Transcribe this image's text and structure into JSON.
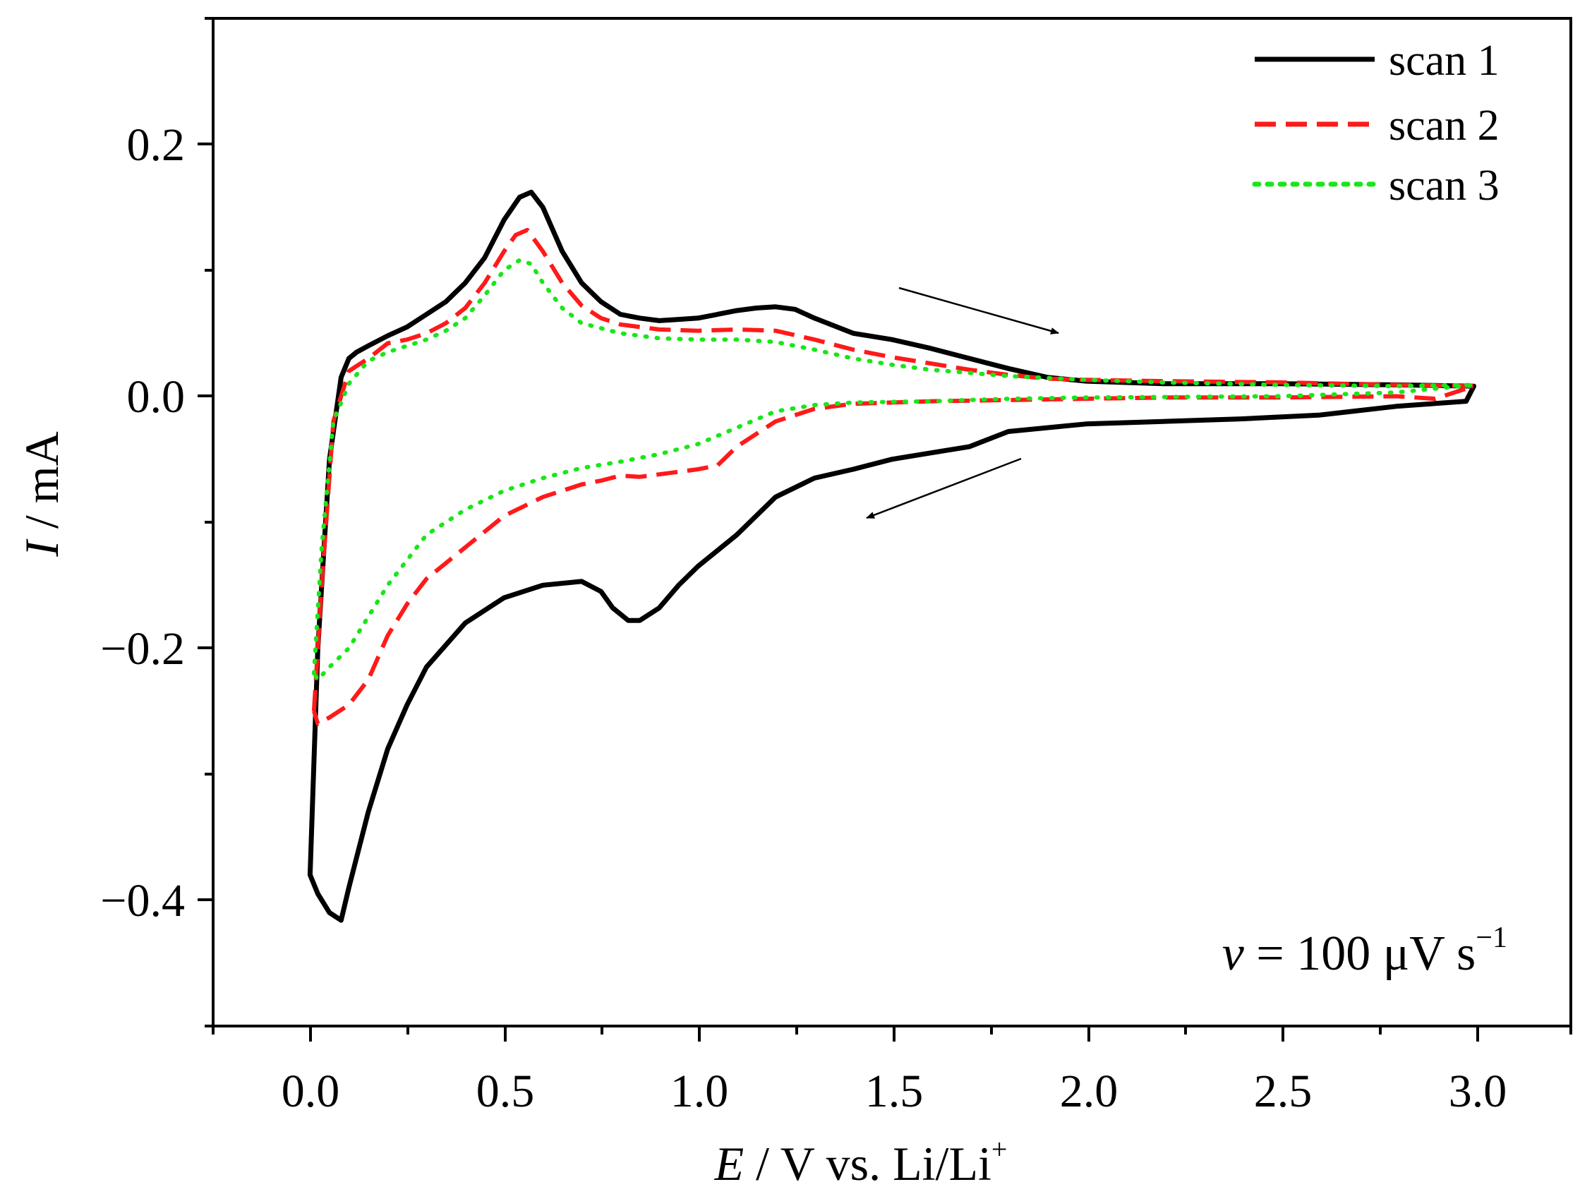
{
  "chart_data": {
    "type": "line",
    "title": "",
    "xlabel": {
      "var": "E",
      "rest": " / V vs. Li/Li",
      "sup": "+"
    },
    "ylabel": {
      "var": "I",
      "rest": " / mA"
    },
    "xlim": [
      -0.25,
      3.25
    ],
    "ylim": [
      -0.5,
      0.3
    ],
    "xticks": [
      0.0,
      0.5,
      1.0,
      1.5,
      2.0,
      2.5,
      3.0
    ],
    "xtick_labels": [
      "0.0",
      "0.5",
      "1.0",
      "1.5",
      "2.0",
      "2.5",
      "3.0"
    ],
    "yticks": [
      -0.4,
      -0.2,
      0.0,
      0.2
    ],
    "ytick_labels": [
      "−0.4",
      "−0.2",
      "0.0",
      "0.2"
    ],
    "legend_position": "top-right",
    "grid": false,
    "annotation": {
      "var": "v",
      "rest": " = 100 μV s",
      "sup": "−1"
    },
    "series": [
      {
        "name": "scan 1",
        "color": "#000000",
        "style": "solid",
        "x": [
          0.0,
          0.02,
          0.05,
          0.08,
          0.1,
          0.12,
          0.15,
          0.2,
          0.25,
          0.3,
          0.35,
          0.4,
          0.45,
          0.5,
          0.54,
          0.57,
          0.6,
          0.65,
          0.7,
          0.75,
          0.8,
          0.85,
          0.9,
          0.95,
          1.0,
          1.05,
          1.1,
          1.15,
          1.2,
          1.25,
          1.3,
          1.4,
          1.5,
          1.6,
          1.7,
          1.8,
          1.9,
          2.0,
          2.2,
          2.5,
          2.8,
          3.0,
          2.98,
          2.8,
          2.6,
          2.4,
          2.2,
          2.0,
          1.8,
          1.7,
          1.6,
          1.5,
          1.4,
          1.3,
          1.2,
          1.1,
          1.0,
          0.95,
          0.9,
          0.85,
          0.82,
          0.78,
          0.75,
          0.7,
          0.6,
          0.55,
          0.5,
          0.4,
          0.3,
          0.25,
          0.2,
          0.15,
          0.1,
          0.08,
          0.05,
          0.02,
          0.0
        ],
        "y": [
          -0.38,
          -0.2,
          -0.05,
          0.015,
          0.03,
          0.035,
          0.04,
          0.048,
          0.055,
          0.065,
          0.075,
          0.09,
          0.11,
          0.14,
          0.158,
          0.162,
          0.15,
          0.115,
          0.09,
          0.075,
          0.065,
          0.062,
          0.06,
          0.061,
          0.062,
          0.065,
          0.068,
          0.07,
          0.071,
          0.069,
          0.062,
          0.05,
          0.045,
          0.038,
          0.03,
          0.022,
          0.015,
          0.012,
          0.01,
          0.01,
          0.009,
          0.008,
          -0.004,
          -0.008,
          -0.015,
          -0.018,
          -0.02,
          -0.022,
          -0.028,
          -0.04,
          -0.045,
          -0.05,
          -0.058,
          -0.065,
          -0.08,
          -0.11,
          -0.135,
          -0.15,
          -0.168,
          -0.178,
          -0.178,
          -0.168,
          -0.155,
          -0.147,
          -0.15,
          -0.155,
          -0.16,
          -0.18,
          -0.215,
          -0.245,
          -0.28,
          -0.33,
          -0.39,
          -0.416,
          -0.41,
          -0.395,
          -0.38
        ]
      },
      {
        "name": "scan 2",
        "color": "#ff1a1a",
        "style": "dashed",
        "x": [
          0.01,
          0.03,
          0.06,
          0.1,
          0.15,
          0.2,
          0.25,
          0.3,
          0.35,
          0.4,
          0.45,
          0.5,
          0.53,
          0.56,
          0.6,
          0.65,
          0.7,
          0.75,
          0.8,
          0.9,
          1.0,
          1.1,
          1.2,
          1.3,
          1.4,
          1.5,
          1.6,
          1.7,
          1.8,
          1.9,
          2.0,
          2.2,
          2.5,
          2.8,
          3.0,
          2.9,
          2.8,
          2.5,
          2.2,
          2.0,
          1.8,
          1.6,
          1.4,
          1.3,
          1.2,
          1.1,
          1.05,
          1.0,
          0.9,
          0.85,
          0.8,
          0.75,
          0.7,
          0.6,
          0.5,
          0.4,
          0.3,
          0.25,
          0.2,
          0.15,
          0.1,
          0.05,
          0.02,
          0.01
        ],
        "y": [
          -0.25,
          -0.15,
          -0.02,
          0.02,
          0.03,
          0.042,
          0.045,
          0.05,
          0.058,
          0.07,
          0.09,
          0.115,
          0.128,
          0.132,
          0.115,
          0.09,
          0.072,
          0.062,
          0.057,
          0.053,
          0.052,
          0.053,
          0.052,
          0.045,
          0.037,
          0.031,
          0.026,
          0.021,
          0.017,
          0.014,
          0.013,
          0.012,
          0.011,
          0.009,
          0.008,
          -0.002,
          -0.0,
          -0.001,
          -0.001,
          -0.002,
          -0.003,
          -0.004,
          -0.006,
          -0.01,
          -0.02,
          -0.04,
          -0.055,
          -0.058,
          -0.062,
          -0.064,
          -0.063,
          -0.067,
          -0.07,
          -0.08,
          -0.095,
          -0.12,
          -0.145,
          -0.165,
          -0.19,
          -0.225,
          -0.245,
          -0.255,
          -0.26,
          -0.25
        ]
      },
      {
        "name": "scan 3",
        "color": "#19e619",
        "style": "dotted",
        "x": [
          0.01,
          0.03,
          0.06,
          0.1,
          0.15,
          0.2,
          0.25,
          0.3,
          0.35,
          0.4,
          0.45,
          0.5,
          0.54,
          0.57,
          0.6,
          0.65,
          0.7,
          0.8,
          0.9,
          1.0,
          1.1,
          1.2,
          1.3,
          1.4,
          1.5,
          1.6,
          1.8,
          2.0,
          2.2,
          2.5,
          2.8,
          3.0,
          2.8,
          2.5,
          2.0,
          1.8,
          1.6,
          1.4,
          1.3,
          1.2,
          1.1,
          1.0,
          0.9,
          0.8,
          0.7,
          0.6,
          0.5,
          0.4,
          0.3,
          0.25,
          0.2,
          0.15,
          0.1,
          0.05,
          0.02,
          0.01
        ],
        "y": [
          -0.22,
          -0.12,
          -0.02,
          0.01,
          0.028,
          0.035,
          0.04,
          0.045,
          0.052,
          0.062,
          0.08,
          0.1,
          0.108,
          0.105,
          0.09,
          0.07,
          0.058,
          0.05,
          0.046,
          0.045,
          0.045,
          0.043,
          0.037,
          0.03,
          0.025,
          0.021,
          0.016,
          0.013,
          0.011,
          0.009,
          0.008,
          0.009,
          0.003,
          0.0,
          -0.001,
          -0.002,
          -0.004,
          -0.005,
          -0.007,
          -0.012,
          -0.025,
          -0.038,
          -0.046,
          -0.052,
          -0.057,
          -0.065,
          -0.075,
          -0.09,
          -0.11,
          -0.13,
          -0.15,
          -0.175,
          -0.2,
          -0.215,
          -0.225,
          -0.22
        ]
      }
    ]
  }
}
